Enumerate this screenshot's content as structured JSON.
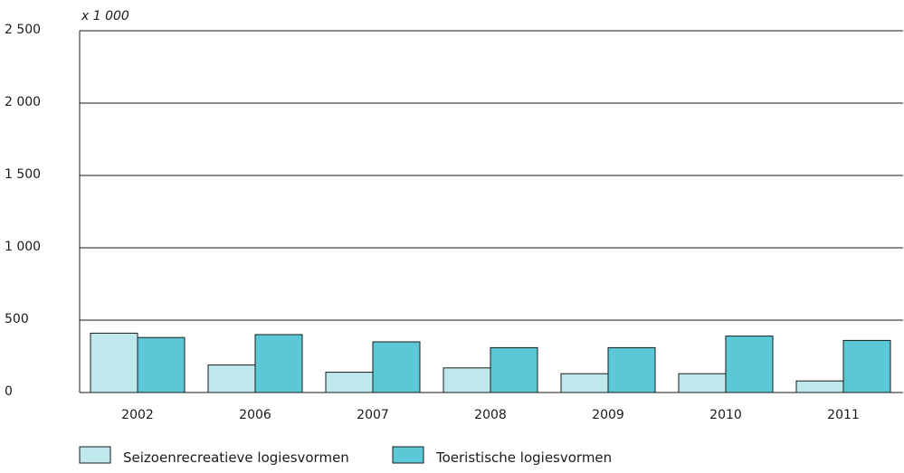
{
  "chart_data": {
    "type": "bar",
    "unit_label": "x 1 000",
    "categories": [
      "2002",
      "2006",
      "2007",
      "2008",
      "2009",
      "2010",
      "2011"
    ],
    "series": [
      {
        "name": "Seizoenrecreatieve logiesvormen",
        "color": "#bfe8ec",
        "values": [
          410,
          190,
          140,
          170,
          130,
          130,
          80
        ]
      },
      {
        "name": "Toeristische logiesvormen",
        "color": "#5bc8d8",
        "values": [
          380,
          400,
          350,
          310,
          310,
          390,
          360
        ]
      }
    ],
    "ylim": [
      0,
      2500
    ],
    "yticks": [
      0,
      500,
      1000,
      1500,
      2000,
      2500
    ],
    "ytick_labels": [
      "0",
      "500",
      "1 000",
      "1 500",
      "2 000",
      "2 500"
    ],
    "grid": true,
    "legend_position": "bottom-left"
  }
}
